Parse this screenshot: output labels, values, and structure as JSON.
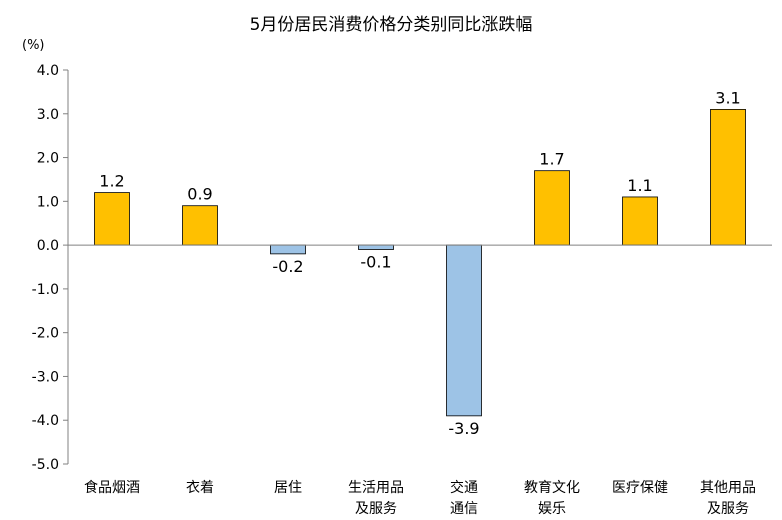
{
  "chart_data": {
    "type": "bar",
    "title": "5月份居民消费价格分类别同比涨跌幅",
    "unit": "(%)",
    "ylim": [
      -5.0,
      4.0
    ],
    "yticks": [
      "4.0",
      "3.0",
      "2.0",
      "1.0",
      "0.0",
      "-1.0",
      "-2.0",
      "-3.0",
      "-4.0",
      "-5.0"
    ],
    "categories": [
      [
        "食品烟酒"
      ],
      [
        "衣着"
      ],
      [
        "居住"
      ],
      [
        "生活用品",
        "及服务"
      ],
      [
        "交通",
        "通信"
      ],
      [
        "教育文化",
        "娱乐"
      ],
      [
        "医疗保健"
      ],
      [
        "其他用品",
        "及服务"
      ]
    ],
    "values": [
      1.2,
      0.9,
      -0.2,
      -0.1,
      -3.9,
      1.7,
      1.1,
      3.1
    ],
    "data_labels": [
      "1.2",
      "0.9",
      "-0.2",
      "-0.1",
      "-3.9",
      "1.7",
      "1.1",
      "3.1"
    ],
    "colors": {
      "positive": "#FFC000",
      "negative": "#9DC3E6",
      "stroke": "#000000",
      "axis": "#808080"
    },
    "grid": false,
    "legend": "none"
  }
}
